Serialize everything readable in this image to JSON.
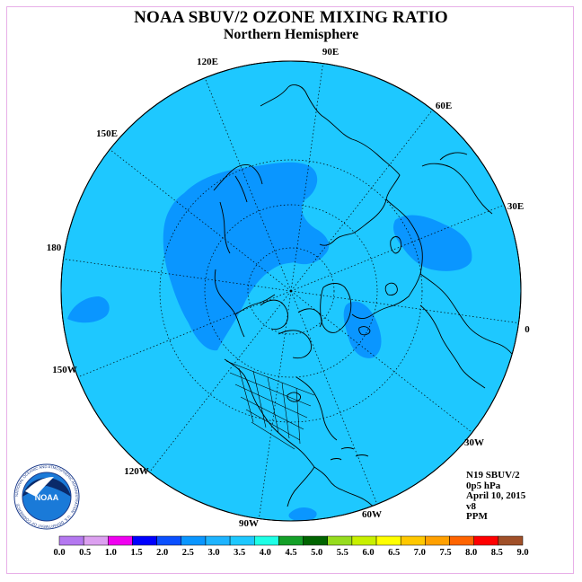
{
  "header": {
    "title": "NOAA SBUV/2 OZONE MIXING RATIO",
    "subtitle": "Northern Hemisphere"
  },
  "map": {
    "projection": "north-polar-stereographic",
    "background_color": "#1ec8ff",
    "longitude_labels": [
      "90E",
      "60E",
      "30E",
      "0",
      "30W",
      "60W",
      "90W",
      "120W",
      "150W",
      "180",
      "150E",
      "120E"
    ],
    "ozone_regions": [
      {
        "level": "2.5-3.0",
        "color": "#0a96ff",
        "description": "band over east Asia / north Pacific"
      },
      {
        "level": "2.5-3.0",
        "color": "#0a96ff",
        "description": "patch over Caspian / central Asia"
      },
      {
        "level": "2.5-3.0",
        "color": "#0a96ff",
        "description": "patch over north Pacific west of dateline"
      },
      {
        "level": "2.5-3.0",
        "color": "#0a96ff",
        "description": "patch over Scandinavia / north Atlantic"
      }
    ]
  },
  "info": {
    "satellite": "N19 SBUV/2",
    "pressure": "0p5 hPa",
    "date": "April 10, 2015",
    "version": "v8",
    "units": "PPM"
  },
  "colorbar": {
    "ticks": [
      "0.0",
      "0.5",
      "1.0",
      "1.5",
      "2.0",
      "2.5",
      "3.0",
      "3.5",
      "4.0",
      "4.5",
      "5.0",
      "5.5",
      "6.0",
      "6.5",
      "7.0",
      "7.5",
      "8.0",
      "8.5",
      "9.0"
    ],
    "colors": [
      "#b478f0",
      "#dca0f0",
      "#f000f0",
      "#0000ff",
      "#0a50ff",
      "#0a96ff",
      "#1eb4ff",
      "#1ec8ff",
      "#1effe6",
      "#14a028",
      "#006400",
      "#96dc1e",
      "#c8f000",
      "#ffff00",
      "#ffc800",
      "#ffa000",
      "#ff6400",
      "#ff0000",
      "#a05028"
    ]
  },
  "logo": {
    "text": "NOAA",
    "ring_text": "NATIONAL OCEANIC AND ATMOSPHERIC ADMINISTRATION · U.S. DEPARTMENT OF COMMERCE"
  }
}
